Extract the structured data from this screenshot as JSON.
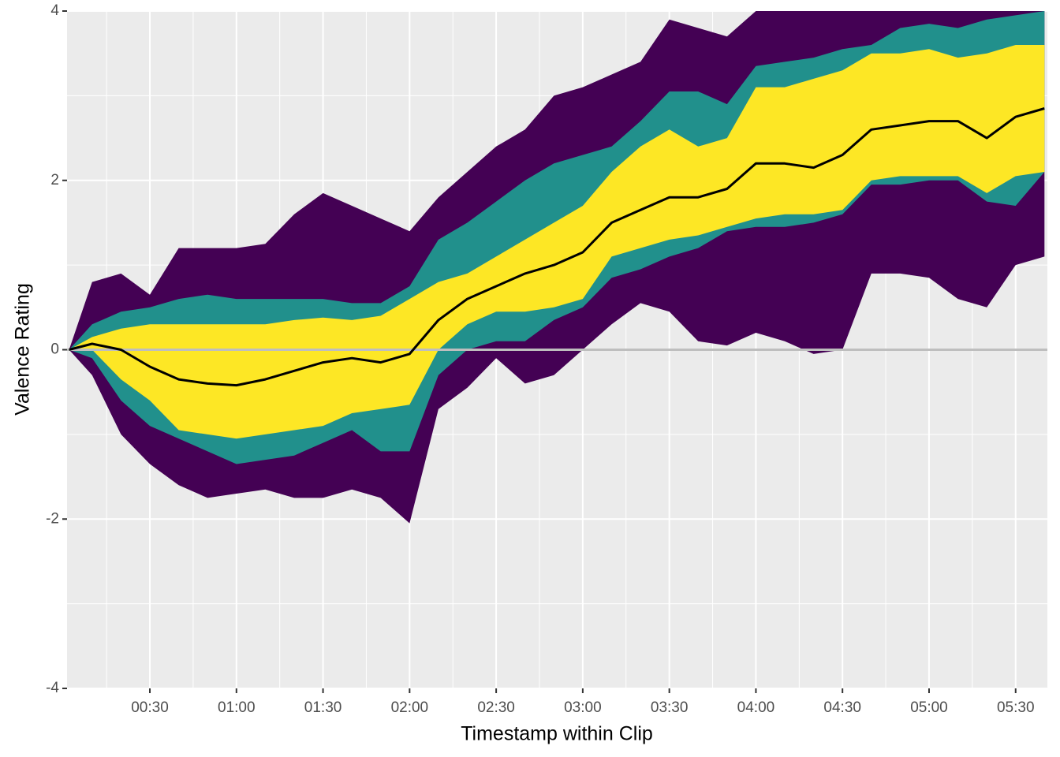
{
  "chart_data": {
    "type": "ribbon",
    "x_label": "Timestamp within Clip",
    "y_label": "Valence Rating",
    "x": [
      2,
      10,
      20,
      30,
      40,
      50,
      60,
      70,
      80,
      90,
      100,
      110,
      120,
      130,
      140,
      150,
      160,
      170,
      180,
      190,
      200,
      210,
      220,
      230,
      240,
      250,
      260,
      270,
      280,
      290,
      300,
      310,
      320,
      330,
      340
    ],
    "series": [
      {
        "color": "#440154",
        "upper": [
          0,
          0.8,
          0.9,
          0.65,
          1.2,
          1.2,
          1.2,
          1.25,
          1.6,
          1.85,
          1.7,
          1.55,
          1.4,
          1.8,
          2.1,
          2.4,
          2.6,
          3.0,
          3.1,
          3.25,
          3.4,
          3.9,
          3.8,
          3.7,
          4.0,
          4.0,
          4.0,
          4.0,
          4.0,
          4.0,
          4.0,
          4.0,
          4.0,
          4.0,
          4.0
        ],
        "lower": [
          0,
          -0.3,
          -1.0,
          -1.35,
          -1.6,
          -1.75,
          -1.7,
          -1.65,
          -1.75,
          -1.75,
          -1.65,
          -1.75,
          -2.05,
          -0.7,
          -0.45,
          -0.1,
          -0.4,
          -0.3,
          0.0,
          0.3,
          0.55,
          0.45,
          0.1,
          0.05,
          0.2,
          0.1,
          -0.05,
          0.0,
          0.9,
          0.9,
          0.85,
          0.6,
          0.5,
          1.0,
          1.1
        ]
      },
      {
        "color": "#21908c",
        "upper": [
          0,
          0.3,
          0.45,
          0.5,
          0.6,
          0.65,
          0.6,
          0.6,
          0.6,
          0.6,
          0.55,
          0.55,
          0.75,
          1.3,
          1.5,
          1.75,
          2.0,
          2.2,
          2.3,
          2.4,
          2.7,
          3.05,
          3.05,
          2.9,
          3.35,
          3.4,
          3.45,
          3.55,
          3.6,
          3.8,
          3.85,
          3.8,
          3.9,
          3.95,
          4.0
        ],
        "lower": [
          0,
          -0.1,
          -0.6,
          -0.9,
          -1.05,
          -1.2,
          -1.35,
          -1.3,
          -1.25,
          -1.1,
          -0.95,
          -1.2,
          -1.2,
          -0.3,
          0.0,
          0.1,
          0.1,
          0.35,
          0.5,
          0.85,
          0.95,
          1.1,
          1.2,
          1.4,
          1.45,
          1.45,
          1.5,
          1.6,
          1.95,
          1.95,
          2.0,
          2.0,
          1.75,
          1.7,
          2.1
        ]
      },
      {
        "color": "#fde725",
        "upper": [
          0,
          0.15,
          0.25,
          0.3,
          0.3,
          0.3,
          0.3,
          0.3,
          0.35,
          0.38,
          0.35,
          0.4,
          0.6,
          0.8,
          0.9,
          1.1,
          1.3,
          1.5,
          1.7,
          2.1,
          2.4,
          2.6,
          2.4,
          2.5,
          3.1,
          3.1,
          3.2,
          3.3,
          3.5,
          3.5,
          3.55,
          3.45,
          3.5,
          3.6,
          3.6
        ],
        "lower": [
          0,
          0,
          -0.35,
          -0.6,
          -0.95,
          -1.0,
          -1.05,
          -1.0,
          -0.95,
          -0.9,
          -0.75,
          -0.7,
          -0.65,
          0.0,
          0.3,
          0.45,
          0.45,
          0.5,
          0.6,
          1.1,
          1.2,
          1.3,
          1.35,
          1.45,
          1.55,
          1.6,
          1.6,
          1.65,
          2.0,
          2.05,
          2.05,
          2.05,
          1.85,
          2.05,
          2.1
        ]
      }
    ],
    "line": {
      "color": "#000000",
      "values": [
        0,
        0.07,
        0.0,
        -0.2,
        -0.35,
        -0.4,
        -0.42,
        -0.35,
        -0.25,
        -0.15,
        -0.1,
        -0.15,
        -0.05,
        0.35,
        0.6,
        0.75,
        0.9,
        1.0,
        1.15,
        1.5,
        1.65,
        1.8,
        1.8,
        1.9,
        2.2,
        2.2,
        2.15,
        2.3,
        2.6,
        2.65,
        2.7,
        2.7,
        2.5,
        2.75,
        2.85
      ]
    },
    "hline": {
      "value": 0,
      "color": "#bebebe"
    },
    "xlim": [
      1.3,
      341
    ],
    "ylim": [
      -4,
      4
    ],
    "xticks": [
      {
        "value": 30,
        "label": "00:30"
      },
      {
        "value": 60,
        "label": "01:00"
      },
      {
        "value": 90,
        "label": "01:30"
      },
      {
        "value": 120,
        "label": "02:00"
      },
      {
        "value": 150,
        "label": "02:30"
      },
      {
        "value": 180,
        "label": "03:00"
      },
      {
        "value": 210,
        "label": "03:30"
      },
      {
        "value": 240,
        "label": "04:00"
      },
      {
        "value": 270,
        "label": "04:30"
      },
      {
        "value": 300,
        "label": "05:00"
      },
      {
        "value": 330,
        "label": "05:30"
      }
    ],
    "yticks": [
      -4,
      -2,
      0,
      2,
      4
    ],
    "x_minor_ticks": [
      15,
      45,
      75,
      105,
      135,
      165,
      195,
      225,
      255,
      285,
      315
    ],
    "y_minor_ticks": [
      -3,
      -1,
      1,
      3
    ],
    "grid": true
  }
}
